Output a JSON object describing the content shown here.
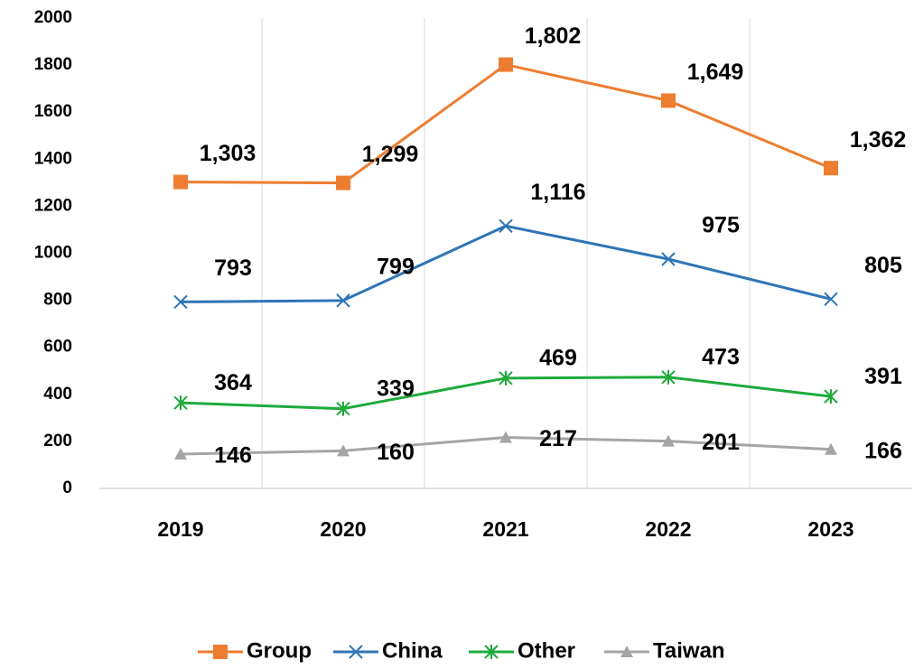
{
  "chart_data": {
    "type": "line",
    "categories": [
      "2019",
      "2020",
      "2021",
      "2022",
      "2023"
    ],
    "series": [
      {
        "name": "Group",
        "color": "#ed7d31",
        "marker": "square",
        "values": [
          1303,
          1299,
          1802,
          1649,
          1362
        ],
        "value_labels": [
          "1,303",
          "1,299",
          "1,802",
          "1,649",
          "1,362"
        ]
      },
      {
        "name": "China",
        "color": "#2e75b6",
        "marker": "x",
        "values": [
          793,
          799,
          1116,
          975,
          805
        ],
        "value_labels": [
          "793",
          "799",
          "1,116",
          "975",
          "805"
        ]
      },
      {
        "name": "Other",
        "color": "#1eaa3c",
        "marker": "star",
        "values": [
          364,
          339,
          469,
          473,
          391
        ],
        "value_labels": [
          "364",
          "339",
          "469",
          "473",
          "391"
        ]
      },
      {
        "name": "Taiwan",
        "color": "#a5a5a5",
        "marker": "triangle",
        "values": [
          146,
          160,
          217,
          201,
          166
        ],
        "value_labels": [
          "146",
          "160",
          "217",
          "201",
          "166"
        ]
      }
    ],
    "ylim": [
      0,
      2000
    ],
    "yticks": [
      0,
      200,
      400,
      600,
      800,
      1000,
      1200,
      1400,
      1600,
      1800,
      2000
    ],
    "grid": true,
    "legend": "bottom"
  }
}
